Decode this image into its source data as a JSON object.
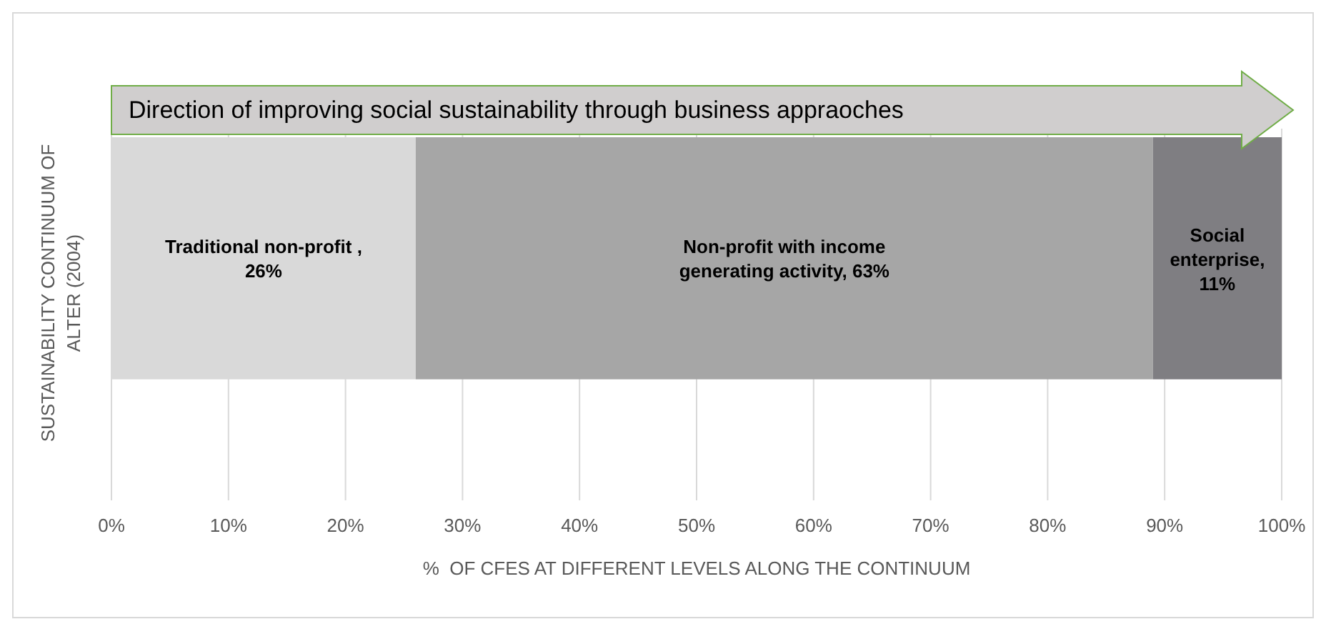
{
  "chart_data": {
    "type": "bar",
    "orientation": "horizontal",
    "stacked": true,
    "categories": [
      null
    ],
    "series": [
      {
        "color": "#d9d9d9",
        "values": [
          26
        ],
        "value_labels": [
          "Traditional non-profit , 26%"
        ]
      },
      {
        "color": "#a6a6a6",
        "values": [
          63
        ],
        "value_labels": [
          "Non-profit with income generating activity, 63%"
        ]
      },
      {
        "color": "#7f7e82",
        "values": [
          11
        ],
        "value_labels": [
          "Social enterprise, 11%"
        ]
      }
    ],
    "xlim": [
      0,
      100
    ],
    "xticks": [
      {
        "value": 0,
        "label": "0%"
      },
      {
        "value": 10,
        "label": "10%"
      },
      {
        "value": 20,
        "label": "20%"
      },
      {
        "value": 30,
        "label": "30%"
      },
      {
        "value": 40,
        "label": "40%"
      },
      {
        "value": 50,
        "label": "50%"
      },
      {
        "value": 60,
        "label": "60%"
      },
      {
        "value": 70,
        "label": "70%"
      },
      {
        "value": 80,
        "label": "80%"
      },
      {
        "value": 90,
        "label": "90%"
      },
      {
        "value": 100,
        "label": "100%"
      }
    ],
    "xlabel": "%  OF CFES AT DIFFERENT LEVELS ALONG THE CONTINUUM",
    "ylabel": "SUSTAINABILITY CONTINUUM OF ALTER (2004)",
    "annotations": [
      "Direction of improving social sustainability through business appraoches"
    ],
    "grid": "x"
  }
}
